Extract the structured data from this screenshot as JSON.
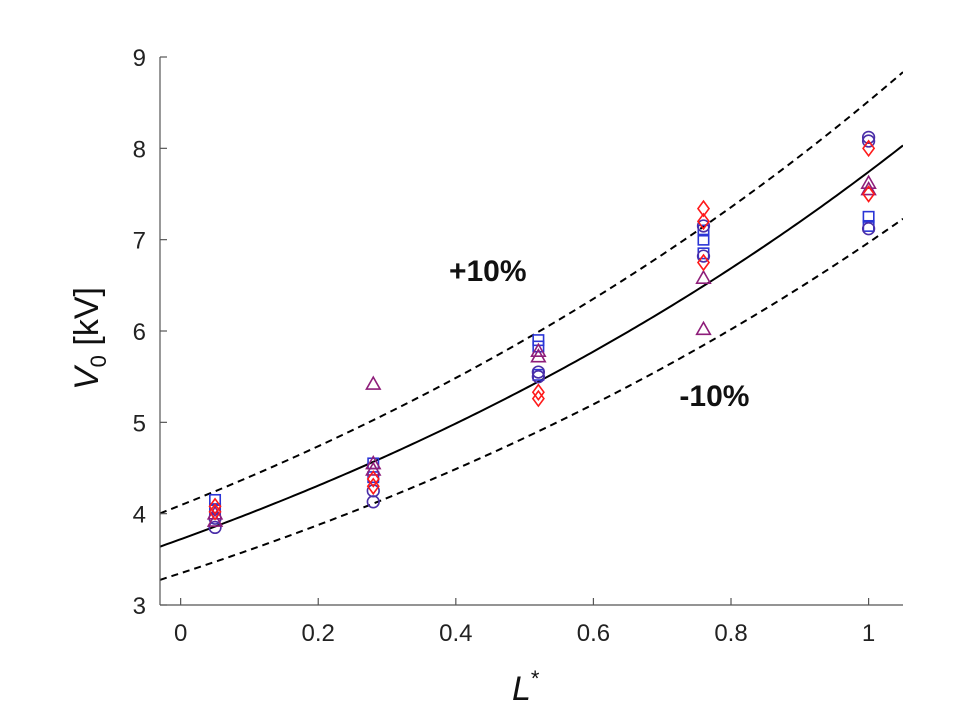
{
  "chart_data": {
    "type": "scatter",
    "title": "",
    "xlabel": "L",
    "xlabel_superscript": "*",
    "ylabel": "V",
    "ylabel_subscript": "0",
    "ylabel_unit": " [kV]",
    "xlim": [
      -0.03,
      1.05
    ],
    "ylim": [
      3,
      9
    ],
    "xticks": [
      0,
      0.2,
      0.4,
      0.6,
      0.8,
      1
    ],
    "xtick_labels": [
      "0",
      "0.2",
      "0.4",
      "0.6",
      "0.8",
      "1"
    ],
    "yticks": [
      3,
      4,
      5,
      6,
      7,
      8,
      9
    ],
    "ytick_labels": [
      "3",
      "4",
      "5",
      "6",
      "7",
      "8",
      "9"
    ],
    "grid": false,
    "colors": {
      "blue": "#2b35d6",
      "red": "#ff1a1a",
      "purple": "#8e1e7a",
      "indigo": "#4a2ea8",
      "fit": "#000000"
    },
    "fit_curve": {
      "name": "fit",
      "a": 3.72,
      "b": 0.733
    },
    "bands": [
      {
        "name": "+10%",
        "factor": 1.1
      },
      {
        "name": "-10%",
        "factor": 0.9
      }
    ],
    "annotations": [
      {
        "text": "+10%",
        "x": 0.39,
        "y": 6.55
      },
      {
        "text": "-10%",
        "x": 0.725,
        "y": 5.18
      }
    ],
    "series": [
      {
        "name": "squares",
        "marker": "square",
        "color": "blue",
        "points": [
          [
            0.05,
            4.15
          ],
          [
            0.05,
            4.05
          ],
          [
            0.28,
            4.55
          ],
          [
            0.28,
            4.4
          ],
          [
            0.52,
            5.9
          ],
          [
            0.52,
            5.83
          ],
          [
            0.52,
            5.52
          ],
          [
            0.76,
            7.1
          ],
          [
            0.76,
            7.0
          ],
          [
            0.76,
            6.85
          ],
          [
            1.0,
            7.25
          ],
          [
            1.0,
            7.15
          ]
        ]
      },
      {
        "name": "circles",
        "marker": "circle",
        "color": "indigo",
        "points": [
          [
            0.05,
            3.85
          ],
          [
            0.05,
            3.95
          ],
          [
            0.28,
            4.13
          ],
          [
            0.28,
            4.25
          ],
          [
            0.52,
            5.55
          ],
          [
            0.52,
            5.5
          ],
          [
            0.76,
            7.15
          ],
          [
            0.76,
            6.82
          ],
          [
            1.0,
            8.12
          ],
          [
            1.0,
            8.08
          ],
          [
            1.0,
            7.12
          ]
        ]
      },
      {
        "name": "triangles",
        "marker": "triangle",
        "color": "purple",
        "points": [
          [
            0.05,
            3.92
          ],
          [
            0.05,
            4.0
          ],
          [
            0.28,
            5.42
          ],
          [
            0.28,
            4.55
          ],
          [
            0.28,
            4.48
          ],
          [
            0.52,
            5.78
          ],
          [
            0.52,
            5.72
          ],
          [
            0.76,
            6.58
          ],
          [
            0.76,
            6.02
          ],
          [
            1.0,
            7.62
          ],
          [
            1.0,
            7.55
          ]
        ]
      },
      {
        "name": "diamonds",
        "marker": "diamond",
        "color": "red",
        "points": [
          [
            0.05,
            4.08
          ],
          [
            0.05,
            4.02
          ],
          [
            0.28,
            4.38
          ],
          [
            0.28,
            4.3
          ],
          [
            0.52,
            5.33
          ],
          [
            0.52,
            5.26
          ],
          [
            0.76,
            7.34
          ],
          [
            0.76,
            7.2
          ],
          [
            0.76,
            6.75
          ],
          [
            1.0,
            8.0
          ],
          [
            1.0,
            7.5
          ]
        ]
      }
    ]
  }
}
